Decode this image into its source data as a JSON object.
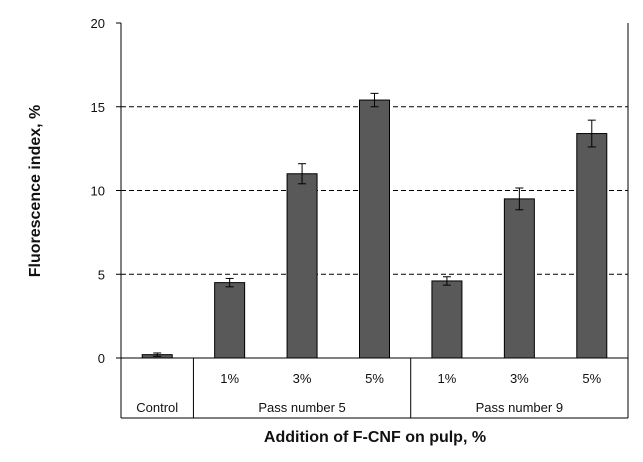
{
  "chart_data": {
    "type": "bar",
    "title": "",
    "xlabel": "Addition of F-CNF on pulp, %",
    "ylabel": "Fluorescence index, %",
    "ylim": [
      0,
      20
    ],
    "yticks": [
      0,
      5,
      10,
      15,
      20
    ],
    "grid": "horizontal dashed at 5, 10, 15",
    "legend": "none",
    "bar_color": "#595959",
    "categories": [
      "",
      "1%",
      "3%",
      "5%",
      "1%",
      "3%",
      "5%"
    ],
    "groups": [
      {
        "label": "Control",
        "count": 1
      },
      {
        "label": "Pass number 5",
        "count": 3
      },
      {
        "label": "Pass number 9",
        "count": 3
      }
    ],
    "values": [
      0.2,
      4.5,
      11.0,
      15.4,
      4.6,
      9.5,
      13.4
    ],
    "errors": [
      0.1,
      0.25,
      0.6,
      0.4,
      0.25,
      0.65,
      0.8
    ]
  }
}
